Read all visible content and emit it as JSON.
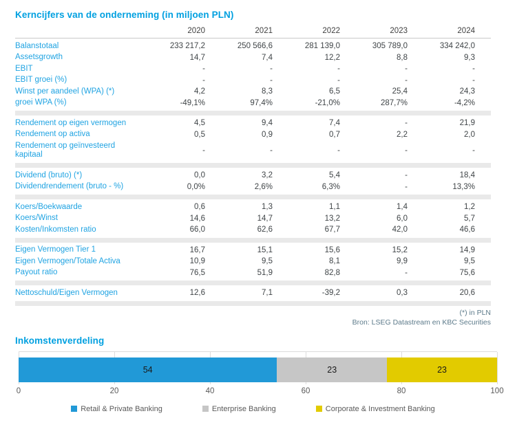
{
  "table": {
    "title": "Kerncijfers van de onderneming (in miljoen PLN)",
    "years": [
      "2020",
      "2021",
      "2022",
      "2023",
      "2024"
    ],
    "groups": [
      {
        "rows": [
          {
            "label": "Balanstotaal",
            "values": [
              "233 217,2",
              "250 566,6",
              "281 139,0",
              "305 789,0",
              "334 242,0"
            ]
          },
          {
            "label": "Assetsgrowth",
            "values": [
              "14,7",
              "7,4",
              "12,2",
              "8,8",
              "9,3"
            ]
          },
          {
            "label": "EBIT",
            "values": [
              "-",
              "-",
              "-",
              "-",
              "-"
            ]
          },
          {
            "label": "EBIT groei (%)",
            "values": [
              "-",
              "-",
              "-",
              "-",
              "-"
            ]
          },
          {
            "label": "Winst per aandeel (WPA) (*)",
            "values": [
              "4,2",
              "8,3",
              "6,5",
              "25,4",
              "24,3"
            ]
          },
          {
            "label": "groei WPA (%)",
            "values": [
              "-49,1%",
              "97,4%",
              "-21,0%",
              "287,7%",
              "-4,2%"
            ]
          }
        ]
      },
      {
        "rows": [
          {
            "label": "Rendement op eigen vermogen",
            "values": [
              "4,5",
              "9,4",
              "7,4",
              "-",
              "21,9"
            ]
          },
          {
            "label": "Rendement op activa",
            "values": [
              "0,5",
              "0,9",
              "0,7",
              "2,2",
              "2,0"
            ]
          },
          {
            "label": "Rendement op geïnvesteerd kapitaal",
            "values": [
              "-",
              "-",
              "-",
              "-",
              "-"
            ]
          }
        ]
      },
      {
        "rows": [
          {
            "label": "Dividend (bruto) (*)",
            "values": [
              "0,0",
              "3,2",
              "5,4",
              "-",
              "18,4"
            ]
          },
          {
            "label": "Dividendrendement (bruto - %)",
            "values": [
              "0,0%",
              "2,6%",
              "6,3%",
              "-",
              "13,3%"
            ]
          }
        ]
      },
      {
        "rows": [
          {
            "label": "Koers/Boekwaarde",
            "values": [
              "0,6",
              "1,3",
              "1,1",
              "1,4",
              "1,2"
            ]
          },
          {
            "label": "Koers/Winst",
            "values": [
              "14,6",
              "14,7",
              "13,2",
              "6,0",
              "5,7"
            ]
          },
          {
            "label": "Kosten/Inkomsten ratio",
            "values": [
              "66,0",
              "62,6",
              "67,7",
              "42,0",
              "46,6"
            ]
          }
        ]
      },
      {
        "rows": [
          {
            "label": "Eigen Vermogen Tier 1",
            "values": [
              "16,7",
              "15,1",
              "15,6",
              "15,2",
              "14,9"
            ]
          },
          {
            "label": "Eigen Vermogen/Totale Activa",
            "values": [
              "10,9",
              "9,5",
              "8,1",
              "9,9",
              "9,5"
            ]
          },
          {
            "label": "Payout ratio",
            "values": [
              "76,5",
              "51,9",
              "82,8",
              "-",
              "75,6"
            ]
          }
        ]
      },
      {
        "rows": [
          {
            "label": "Nettoschuld/Eigen Vermogen",
            "values": [
              "12,6",
              "7,1",
              "-39,2",
              "0,3",
              "20,6"
            ]
          }
        ]
      }
    ],
    "footnote_line1": "(*) in PLN",
    "footnote_line2": "Bron: LSEG Datastream en KBC Securities"
  },
  "chart": {
    "title": "Inkomstenverdeling"
  },
  "chart_data": {
    "type": "bar",
    "subtype": "horizontal-stacked",
    "title": "Inkomstenverdeling",
    "categories": [
      "Inkomstenverdeling"
    ],
    "series": [
      {
        "name": "Retail & Private Banking",
        "values": [
          54
        ],
        "color": "#2199D7"
      },
      {
        "name": "Enterprise Banking",
        "values": [
          23
        ],
        "color": "#C6C6C6"
      },
      {
        "name": "Corporate & Investment Banking",
        "values": [
          23
        ],
        "color": "#E2CB00"
      }
    ],
    "xlim": [
      0,
      100
    ],
    "xticks": [
      0,
      20,
      40,
      60,
      80,
      100
    ],
    "grid": true,
    "legend_position": "bottom"
  },
  "colors": {
    "accent_blue": "#00A0E0",
    "row_label_blue": "#1FA3E2",
    "value_text": "#3F4447",
    "divider_band": "#E9E9E9",
    "footnote_text": "#5C7A8A",
    "axis_text": "#595959"
  }
}
